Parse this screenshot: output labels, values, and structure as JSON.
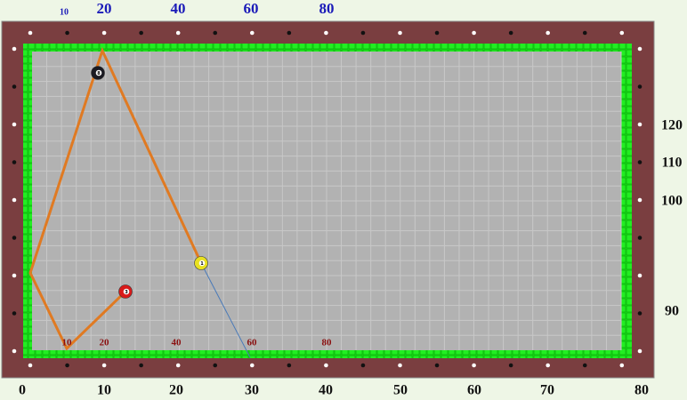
{
  "top_labels": [
    "10",
    "20",
    "40",
    "60",
    "80"
  ],
  "right_labels": [
    "120",
    "110",
    "100",
    "90"
  ],
  "bottom_labels": [
    "0",
    "10",
    "20",
    "30",
    "40",
    "50",
    "60",
    "70",
    "80"
  ],
  "inner_labels": [
    "10",
    "20",
    "40",
    "60",
    "80"
  ],
  "balls": [
    {
      "label": "8"
    },
    {
      "label": "1"
    },
    {
      "label": "3"
    }
  ]
}
